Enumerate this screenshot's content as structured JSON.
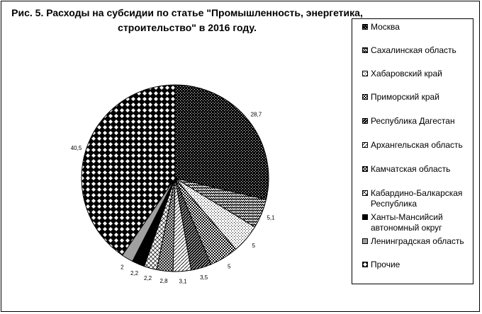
{
  "chart_data": {
    "type": "pie",
    "title_line1": "Рис. 5. Расходы на субсидии по статье \"Промышленность, энергетика,",
    "title_line2": "строительство\" в 2016 году.",
    "legend_placement": "right",
    "slices": [
      {
        "label": "Москва",
        "value": 28.7,
        "data_label": "28,7",
        "pattern": "hatch-dense"
      },
      {
        "label": "Сахалинская область",
        "value": 5.1,
        "data_label": "5,1",
        "pattern": "zigzag"
      },
      {
        "label": "Хабаровский край",
        "value": 5,
        "data_label": "5",
        "pattern": "dots"
      },
      {
        "label": "Приморский край",
        "value": 5,
        "data_label": "5",
        "pattern": "checker-dark"
      },
      {
        "label": "Республика Дагестан",
        "value": 3.5,
        "data_label": "3,5",
        "pattern": "diag-dark"
      },
      {
        "label": "Архангельская область",
        "value": 3.1,
        "data_label": "3,1",
        "pattern": "diag-light"
      },
      {
        "label": "Камчатская область",
        "value": 2.8,
        "data_label": "2,8",
        "pattern": "weave"
      },
      {
        "label": "Кабардино-Балкарская Республика",
        "value": 2.2,
        "data_label": "2,2",
        "pattern": "diag-cross"
      },
      {
        "label": "Ханты-Мансийсий автономный округ",
        "value": 2.2,
        "data_label": "2,2",
        "pattern": "solid-black"
      },
      {
        "label": "Ленинградская область",
        "value": 2,
        "data_label": "2",
        "pattern": "solid-gray"
      },
      {
        "label": "Прочие",
        "value": 40.5,
        "data_label": "40,5",
        "pattern": "diamond"
      }
    ],
    "legend_lines": [
      [
        "Москва"
      ],
      [
        "Сахалинская область"
      ],
      [
        "Хабаровский край"
      ],
      [
        "Приморский край"
      ],
      [
        "Республика Дагестан"
      ],
      [
        "Архангельская область"
      ],
      [
        "Камчатская область"
      ],
      [
        "Кабардино-Балкарская",
        "Республика"
      ],
      [
        "Ханты-Мансийсий",
        "автономный округ"
      ],
      [
        "Ленинградская область"
      ],
      [
        "Прочие"
      ]
    ],
    "colors": {
      "ink": "#000000",
      "gray": "#a0a0a0",
      "background": "#ffffff"
    }
  }
}
